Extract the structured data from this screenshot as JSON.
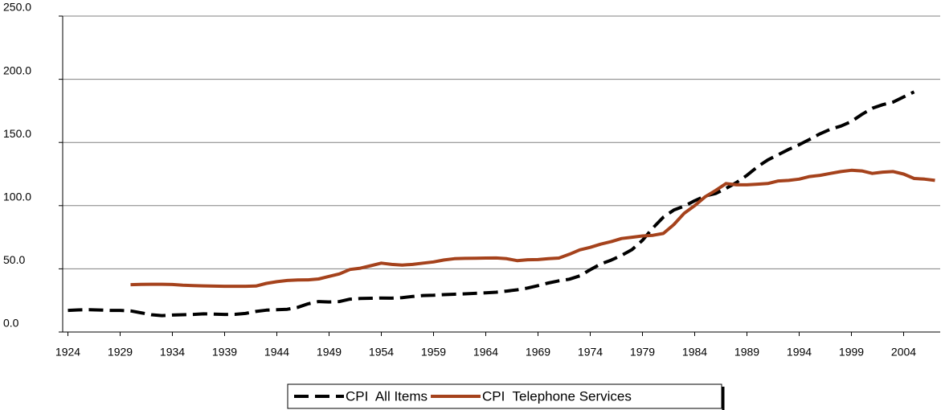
{
  "chart_data": {
    "type": "line",
    "x": [
      1924,
      1925,
      1926,
      1927,
      1928,
      1929,
      1930,
      1931,
      1932,
      1933,
      1934,
      1935,
      1936,
      1937,
      1938,
      1939,
      1940,
      1941,
      1942,
      1943,
      1944,
      1945,
      1946,
      1947,
      1948,
      1949,
      1950,
      1951,
      1952,
      1953,
      1954,
      1955,
      1956,
      1957,
      1958,
      1959,
      1960,
      1961,
      1962,
      1963,
      1964,
      1965,
      1966,
      1967,
      1968,
      1969,
      1970,
      1971,
      1972,
      1973,
      1974,
      1975,
      1976,
      1977,
      1978,
      1979,
      1980,
      1981,
      1982,
      1983,
      1984,
      1985,
      1986,
      1987,
      1988,
      1989,
      1990,
      1991,
      1992,
      1993,
      1994,
      1995,
      1996,
      1997,
      1998,
      1999,
      2000,
      2001,
      2002,
      2003,
      2004,
      2005,
      2006,
      2007
    ],
    "series": [
      {
        "name": "CPI  All Items",
        "color": "#000000",
        "dash": true,
        "values": [
          17.1,
          17.5,
          17.7,
          17.4,
          17.1,
          17.1,
          16.7,
          15.2,
          13.7,
          13.0,
          13.4,
          13.7,
          13.9,
          14.4,
          14.1,
          13.9,
          14.0,
          14.7,
          16.3,
          17.3,
          17.6,
          18.0,
          19.5,
          22.3,
          24.1,
          23.8,
          24.1,
          26.0,
          26.5,
          26.7,
          26.9,
          26.8,
          27.2,
          28.1,
          28.9,
          29.1,
          29.6,
          29.9,
          30.2,
          30.6,
          31.0,
          31.5,
          32.4,
          33.4,
          34.8,
          36.7,
          38.8,
          40.5,
          41.8,
          44.4,
          49.3,
          53.8,
          56.9,
          60.6,
          65.2,
          72.6,
          82.4,
          90.9,
          96.5,
          99.6,
          103.9,
          107.6,
          109.6,
          113.6,
          118.3,
          124.0,
          130.7,
          136.2,
          140.3,
          144.5,
          148.2,
          152.4,
          156.9,
          160.5,
          163.0,
          166.6,
          172.2,
          177.1,
          179.9,
          182.0,
          186.0,
          190.0,
          null,
          null
        ]
      },
      {
        "name": "CPI  Telephone Services",
        "color": "#a5421c",
        "dash": false,
        "values": [
          null,
          null,
          null,
          null,
          null,
          null,
          37.5,
          37.7,
          37.8,
          37.8,
          37.6,
          37.0,
          36.8,
          36.5,
          36.3,
          36.2,
          36.2,
          36.2,
          36.4,
          38.5,
          39.8,
          40.8,
          41.2,
          41.3,
          42.0,
          44.0,
          46.0,
          49.5,
          50.5,
          52.5,
          54.5,
          53.5,
          53.0,
          53.5,
          54.5,
          55.5,
          57.0,
          58.0,
          58.3,
          58.4,
          58.5,
          58.6,
          58.0,
          56.5,
          57.2,
          57.3,
          58.0,
          58.5,
          61.5,
          65.0,
          67.0,
          69.5,
          71.5,
          74.0,
          75.0,
          76.0,
          76.5,
          78.0,
          85.0,
          94.0,
          100.0,
          107.0,
          112.0,
          117.5,
          116.5,
          116.5,
          117.0,
          117.5,
          119.5,
          120.0,
          121.0,
          123.0,
          124.0,
          125.5,
          127.0,
          128.0,
          127.5,
          125.5,
          126.5,
          127.0,
          125.0,
          121.5,
          121.0,
          120.0
        ]
      }
    ],
    "xlim": [
      1923.5,
      2007.5
    ],
    "xticks": [
      1924,
      1929,
      1934,
      1939,
      1944,
      1949,
      1954,
      1959,
      1964,
      1969,
      1974,
      1979,
      1984,
      1989,
      1994,
      1999,
      2004
    ],
    "ylim": [
      0,
      250
    ],
    "yticks": [
      {
        "value": 0,
        "label": "0.0"
      },
      {
        "value": 50,
        "label": "50.0"
      },
      {
        "value": 100,
        "label": "100.0"
      },
      {
        "value": 150,
        "label": "150.0"
      },
      {
        "value": 200,
        "label": "200.0"
      },
      {
        "value": 250,
        "label": "250.0"
      }
    ],
    "grid": true,
    "legend": "bottom"
  }
}
